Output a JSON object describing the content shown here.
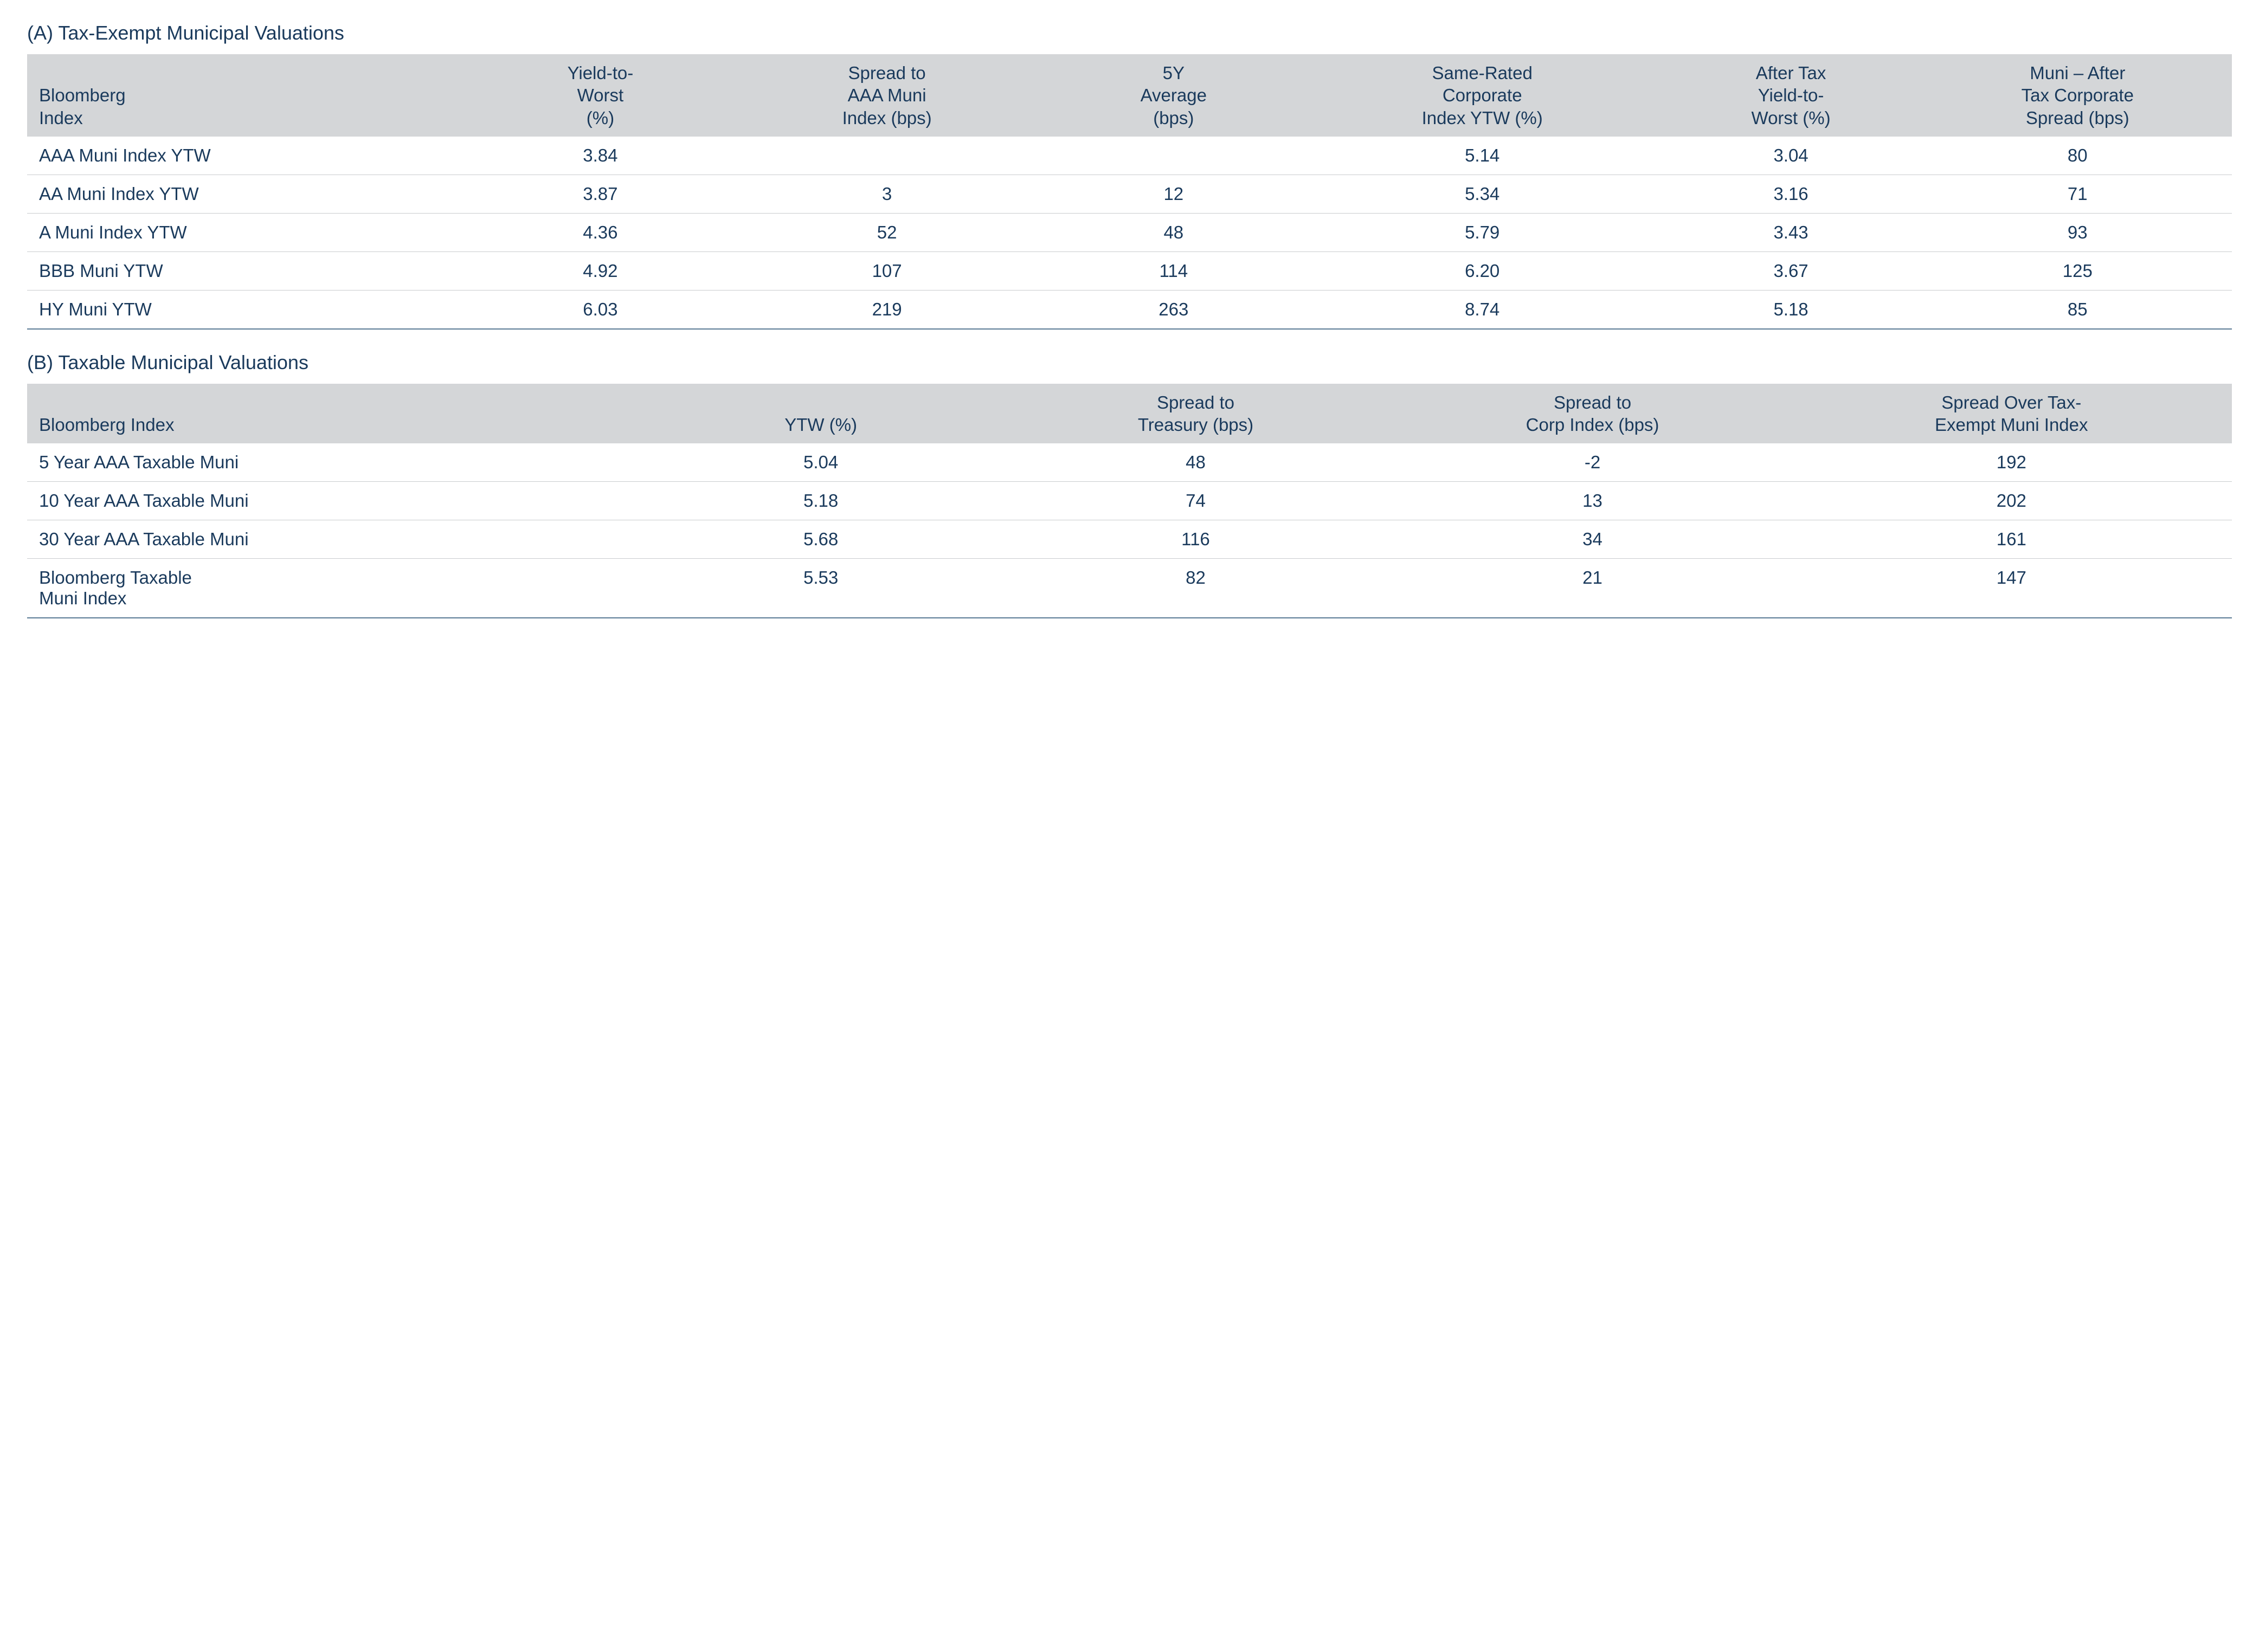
{
  "colors": {
    "text": "#1a3a5c",
    "header_bg": "#d4d6d8",
    "row_border": "#c9ccce",
    "bottom_border": "#5a7a95",
    "background": "#ffffff"
  },
  "tableA": {
    "title": "(A) Tax-Exempt Municipal Valuations",
    "headers": {
      "h1a": "Bloomberg",
      "h1b": "Index",
      "h2a": "Yield-to-",
      "h2b": "Worst",
      "h2c": "(%)",
      "h3a": "Spread to",
      "h3b": "AAA Muni",
      "h3c": "Index (bps)",
      "h4a": "5Y",
      "h4b": "Average",
      "h4c": "(bps)",
      "h5a": "Same-Rated",
      "h5b": "Corporate",
      "h5c": "Index YTW (%)",
      "h6a": "After Tax",
      "h6b": "Yield-to-",
      "h6c": "Worst (%)",
      "h7a": "Muni – After",
      "h7b": "Tax Corporate",
      "h7c": "Spread (bps)"
    },
    "rows": [
      {
        "label": "AAA Muni Index YTW",
        "c2": "3.84",
        "c3": "",
        "c4": "",
        "c5": "5.14",
        "c6": "3.04",
        "c7": "80"
      },
      {
        "label": "AA Muni Index YTW",
        "c2": "3.87",
        "c3": "3",
        "c4": "12",
        "c5": "5.34",
        "c6": "3.16",
        "c7": "71"
      },
      {
        "label": "A Muni Index YTW",
        "c2": "4.36",
        "c3": "52",
        "c4": "48",
        "c5": "5.79",
        "c6": "3.43",
        "c7": "93"
      },
      {
        "label": "BBB Muni YTW",
        "c2": "4.92",
        "c3": "107",
        "c4": "114",
        "c5": "6.20",
        "c6": "3.67",
        "c7": "125"
      },
      {
        "label": "HY Muni YTW",
        "c2": "6.03",
        "c3": "219",
        "c4": "263",
        "c5": "8.74",
        "c6": "5.18",
        "c7": "85"
      }
    ]
  },
  "tableB": {
    "title": "(B) Taxable Municipal Valuations",
    "headers": {
      "h1": "Bloomberg Index",
      "h2": "YTW (%)",
      "h3a": "Spread to",
      "h3b": "Treasury (bps)",
      "h4a": "Spread to",
      "h4b": "Corp Index (bps)",
      "h5a": "Spread Over Tax-",
      "h5b": "Exempt Muni Index"
    },
    "rows": [
      {
        "label": "5 Year AAA Taxable Muni",
        "c2": "5.04",
        "c3": "48",
        "c4": "-2",
        "c5": "192"
      },
      {
        "label": "10 Year AAA Taxable Muni",
        "c2": "5.18",
        "c3": "74",
        "c4": "13",
        "c5": "202"
      },
      {
        "label": "30 Year AAA Taxable Muni",
        "c2": "5.68",
        "c3": "116",
        "c4": "34",
        "c5": "161"
      },
      {
        "label_a": "Bloomberg Taxable",
        "label_b": "Muni Index",
        "c2": "5.53",
        "c3": "82",
        "c4": "21",
        "c5": "147"
      }
    ]
  }
}
